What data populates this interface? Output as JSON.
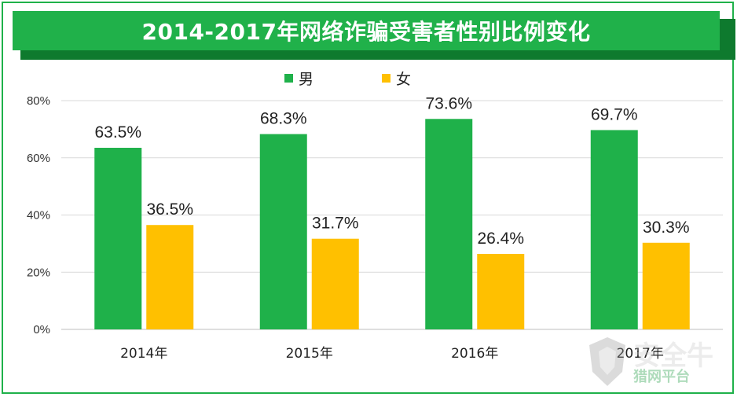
{
  "title": "2014-2017年网络诈骗受害者性别比例变化",
  "colors": {
    "male": "#1fb14a",
    "female": "#ffc000",
    "frame": "#1fb14a",
    "title_bg": "#20b14a",
    "title_shadow": "#0e7a2e",
    "grid": "#d9d9d9"
  },
  "watermark": {
    "line1": "安全牛",
    "line2": "猎网平台"
  },
  "chart_data": {
    "type": "bar",
    "title": "2014-2017年网络诈骗受害者性别比例变化",
    "categories": [
      "2014年",
      "2015年",
      "2016年",
      "2017年"
    ],
    "series": [
      {
        "name": "男",
        "values": [
          63.5,
          68.3,
          73.6,
          69.7
        ],
        "labels": [
          "63.5%",
          "68.3%",
          "73.6%",
          "69.7%"
        ],
        "color": "#1fb14a"
      },
      {
        "name": "女",
        "values": [
          36.5,
          31.7,
          26.4,
          30.3
        ],
        "labels": [
          "36.5%",
          "31.7%",
          "26.4%",
          "30.3%"
        ],
        "color": "#ffc000"
      }
    ],
    "ylim": [
      0,
      80
    ],
    "yticks": [
      "0%",
      "20%",
      "40%",
      "60%",
      "80%"
    ],
    "ytick_values": [
      0,
      20,
      40,
      60,
      80
    ],
    "grid": true,
    "legend_position": "top"
  }
}
